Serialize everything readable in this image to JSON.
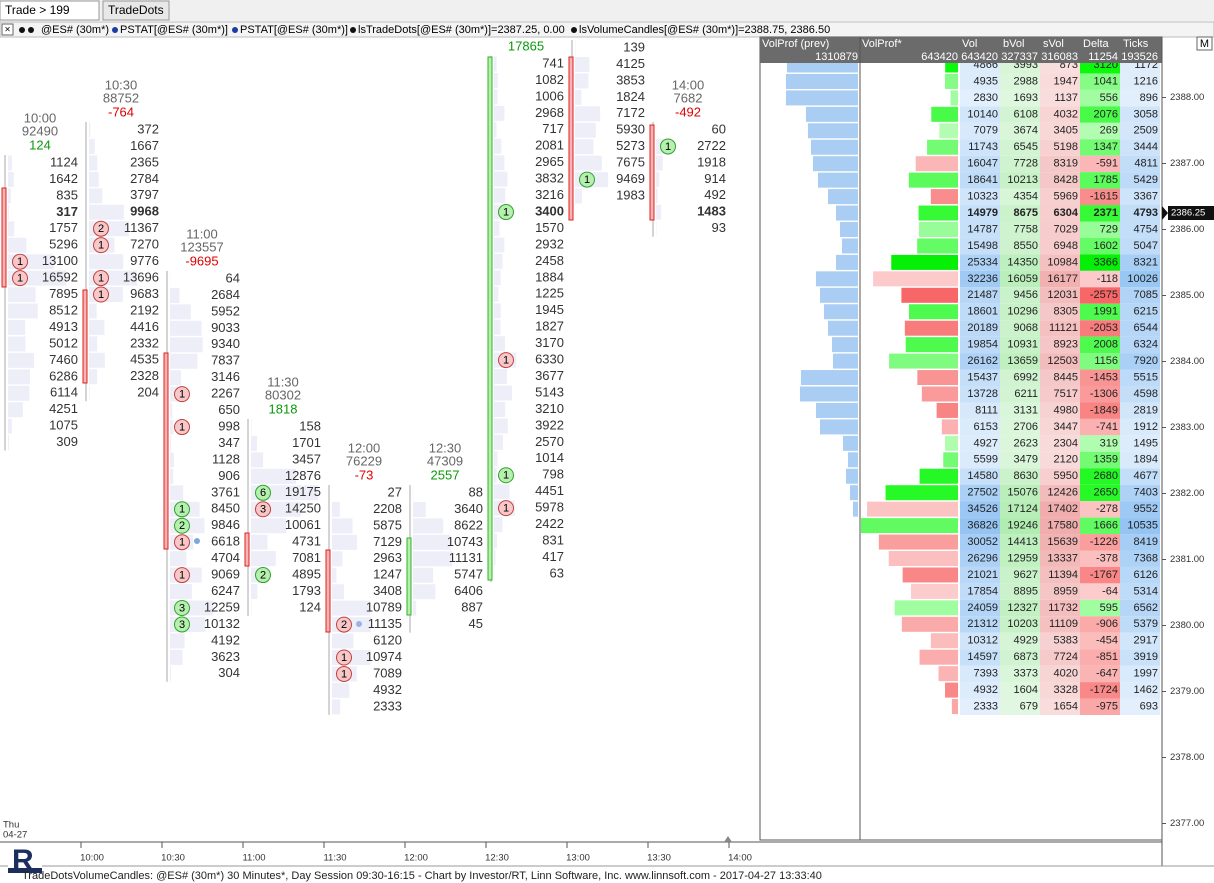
{
  "tabs": [
    "Trade > 199",
    "TradeDots"
  ],
  "indicators": [
    "@ES# (30m*)",
    "PSTAT[@ES# (30m*)]",
    "PSTAT[@ES# (30m*)]",
    "lsTradeDots[@ES# (30m*)]=2387.25, 0.00",
    "lsVolumeCandles[@ES# (30m*)]=2388.75, 2386.50"
  ],
  "menu_button": "M",
  "columns": [
    {
      "time": "10:00",
      "volume": 92490,
      "delta": 124,
      "rows": [
        1124,
        1642,
        835,
        317,
        1757,
        5296,
        13100,
        16592,
        7895,
        8512,
        4913,
        5012,
        7460,
        6286,
        6114,
        4251,
        1075,
        309
      ],
      "dots": [
        {
          "count": 1,
          "color": "red",
          "row": 6
        },
        {
          "count": 1,
          "color": "red",
          "row": 7
        }
      ]
    },
    {
      "time": "10:30",
      "volume": 88752,
      "delta": -764,
      "rows": [
        372,
        1667,
        2365,
        2784,
        3797,
        9968,
        11367,
        7270,
        9776,
        13696,
        9683,
        2192,
        4416,
        2332,
        4535,
        2328,
        204
      ],
      "dots": [
        {
          "count": 2,
          "color": "red",
          "row": 6
        },
        {
          "count": 1,
          "color": "red",
          "row": 7
        },
        {
          "count": 1,
          "color": "red",
          "row": 9
        },
        {
          "count": 1,
          "color": "red",
          "row": 10
        }
      ]
    },
    {
      "time": "11:00",
      "volume": 123557,
      "delta": -9695,
      "rows": [
        64,
        2684,
        5952,
        9033,
        9340,
        7837,
        3146,
        2267,
        650,
        998,
        347,
        1128,
        906,
        3761,
        8450,
        9846,
        6618,
        4704,
        9069,
        6247,
        12259,
        10132,
        4192,
        3623,
        304
      ],
      "dots": [
        {
          "count": 1,
          "color": "red",
          "row": 7
        },
        {
          "count": 1,
          "color": "red",
          "row": 9
        },
        {
          "count": 1,
          "color": "green",
          "row": 14
        },
        {
          "count": 2,
          "color": "green",
          "row": 15
        },
        {
          "count": 1,
          "color": "red",
          "row": 16
        },
        {
          "count": 1,
          "color": "red",
          "row": 18
        },
        {
          "count": 3,
          "color": "green",
          "row": 20
        },
        {
          "count": 3,
          "color": "green",
          "row": 21
        }
      ]
    },
    {
      "time": "11:30",
      "volume": 80302,
      "delta": 1818,
      "rows": [
        158,
        1701,
        3457,
        12876,
        19175,
        14250,
        10061,
        4731,
        7081,
        4895,
        1793,
        124
      ],
      "dots": [
        {
          "count": 6,
          "color": "green",
          "row": 4
        },
        {
          "count": 3,
          "color": "red",
          "row": 5
        },
        {
          "count": 2,
          "color": "green",
          "row": 9
        }
      ]
    },
    {
      "time": "12:00",
      "volume": 76229,
      "delta": -73,
      "rows": [
        27,
        2208,
        5875,
        7129,
        2963,
        1247,
        3408,
        10789,
        11135,
        6120,
        10974,
        7089,
        4932,
        2333
      ],
      "dots": [
        {
          "count": 2,
          "color": "red",
          "row": 8
        },
        {
          "count": 1,
          "color": "red",
          "row": 10
        },
        {
          "count": 1,
          "color": "red",
          "row": 11
        }
      ]
    },
    {
      "time": "12:30",
      "volume": 47309,
      "delta": 2557,
      "rows": [
        88,
        3640,
        8622,
        10743,
        11131,
        5747,
        6406,
        887,
        45
      ],
      "dots": []
    },
    {
      "delta": 17865,
      "rows": [
        741,
        1082,
        1006,
        2968,
        717,
        2081,
        2965,
        3832,
        3216,
        3400,
        1570,
        2932,
        2458,
        1884,
        1225,
        1945,
        1827,
        3170,
        6330,
        3677,
        5143,
        3210,
        3922,
        2570,
        1014,
        798,
        4451,
        5978,
        2422,
        831,
        417,
        63
      ],
      "dots": [
        {
          "count": 1,
          "color": "green",
          "row": 9
        },
        {
          "count": 1,
          "color": "red",
          "row": 18
        },
        {
          "count": 1,
          "color": "green",
          "row": 25
        },
        {
          "count": 1,
          "color": "red",
          "row": 27
        }
      ]
    },
    {
      "rows": [
        139,
        4125,
        3853,
        1824,
        7172,
        5930,
        5273,
        7675,
        9469,
        1983
      ],
      "dots": [
        {
          "count": 1,
          "color": "green",
          "row": 8
        }
      ]
    },
    {
      "time": "14:00",
      "volume": 7682,
      "delta": -492,
      "rows": [
        60,
        2722,
        1918,
        914,
        492,
        1483,
        93
      ],
      "dots": [
        {
          "count": 1,
          "color": "green",
          "row": 1
        }
      ]
    }
  ],
  "profile": {
    "headers": [
      "VolProf (prev)",
      "VolProf*",
      "Vol",
      "bVol",
      "sVol",
      "Delta",
      "Ticks"
    ],
    "totals": [
      1310879,
      643420,
      643420,
      327337,
      316083,
      11254,
      193526
    ],
    "rows": [
      [
        4866,
        3993,
        873,
        3120,
        1172
      ],
      [
        4935,
        2988,
        1947,
        1041,
        1216
      ],
      [
        2830,
        1693,
        1137,
        556,
        896
      ],
      [
        10140,
        6108,
        4032,
        2076,
        3058
      ],
      [
        7079,
        3674,
        3405,
        269,
        2509
      ],
      [
        11743,
        6545,
        5198,
        1347,
        3444
      ],
      [
        16047,
        7728,
        8319,
        -591,
        4811
      ],
      [
        18641,
        10213,
        8428,
        1785,
        5429
      ],
      [
        10323,
        4354,
        5969,
        -1615,
        3367
      ],
      [
        14979,
        8675,
        6304,
        2371,
        4793
      ],
      [
        14787,
        7758,
        7029,
        729,
        4754
      ],
      [
        15498,
        8550,
        6948,
        1602,
        5047
      ],
      [
        25334,
        14350,
        10984,
        3366,
        8321
      ],
      [
        32236,
        16059,
        16177,
        -118,
        10026
      ],
      [
        21487,
        9456,
        12031,
        -2575,
        7085
      ],
      [
        18601,
        10296,
        8305,
        1991,
        6215
      ],
      [
        20189,
        9068,
        11121,
        -2053,
        6544
      ],
      [
        19854,
        10931,
        8923,
        2008,
        6324
      ],
      [
        26162,
        13659,
        12503,
        1156,
        7920
      ],
      [
        15437,
        6992,
        8445,
        -1453,
        5515
      ],
      [
        13728,
        6211,
        7517,
        -1306,
        4598
      ],
      [
        8111,
        3131,
        4980,
        -1849,
        2819
      ],
      [
        6153,
        2706,
        3447,
        -741,
        1912
      ],
      [
        4927,
        2623,
        2304,
        319,
        1495
      ],
      [
        5599,
        3479,
        2120,
        1359,
        1894
      ],
      [
        14580,
        8630,
        5950,
        2680,
        4677
      ],
      [
        27502,
        15076,
        12426,
        2650,
        7403
      ],
      [
        34526,
        17124,
        17402,
        -278,
        9552
      ],
      [
        36826,
        19246,
        17580,
        1666,
        10535
      ],
      [
        30052,
        14413,
        15639,
        -1226,
        8419
      ],
      [
        26296,
        12959,
        13337,
        -378,
        7368
      ],
      [
        21021,
        9627,
        11394,
        -1767,
        6126
      ],
      [
        17854,
        8895,
        8959,
        -64,
        5314
      ],
      [
        24059,
        12327,
        11732,
        595,
        6562
      ],
      [
        21312,
        10203,
        11109,
        -906,
        5379
      ],
      [
        10312,
        4929,
        5383,
        -454,
        2917
      ],
      [
        14597,
        6873,
        7724,
        -851,
        3919
      ],
      [
        7393,
        3373,
        4020,
        -647,
        1997
      ],
      [
        4932,
        1604,
        3328,
        -1724,
        1462
      ],
      [
        2333,
        679,
        1654,
        -975,
        693
      ]
    ],
    "prev_values": [
      26980,
      27360,
      27360,
      19760,
      19000,
      17860,
      17100,
      15200,
      11400,
      8360,
      6840,
      6080,
      8360,
      15960,
      14440,
      12920,
      11400,
      9880,
      9500,
      21660,
      22040,
      15960,
      14440,
      5700,
      3800,
      4560,
      3040,
      1900
    ]
  },
  "price_axis": {
    "ticks": [
      {
        "value": 2388,
        "label": "2388.00"
      },
      {
        "value": 2387,
        "label": "2387.00"
      },
      {
        "value": 2386,
        "label": "2386.00"
      },
      {
        "value": 2385,
        "label": "2385.00"
      },
      {
        "value": 2384,
        "label": "2384.00"
      },
      {
        "value": 2383,
        "label": "2383.00"
      },
      {
        "value": 2382,
        "label": "2382.00"
      },
      {
        "value": 2381,
        "label": "2381.00"
      },
      {
        "value": 2380,
        "label": "2380.00"
      },
      {
        "value": 2379,
        "label": "2379.00"
      },
      {
        "value": 2378,
        "label": "2378.00"
      },
      {
        "value": 2377,
        "label": "2377.00"
      }
    ],
    "current": {
      "value": 2386.25,
      "label": "2386.25"
    }
  },
  "time_axis": {
    "labels": [
      "10:00",
      "10:30",
      "11:00",
      "11:30",
      "12:00",
      "12:30",
      "13:00",
      "13:30",
      "14:00"
    ],
    "day": "Thu",
    "date": "04-27"
  },
  "footer": "TradeDotsVolumeCandles: @ES# (30m*) 30 Minutes*, Day Session 09:30-16:15 - Chart by Investor/RT, Linn Software, Inc. www.linnsoft.com - 2017-04-27 13:33:40"
}
